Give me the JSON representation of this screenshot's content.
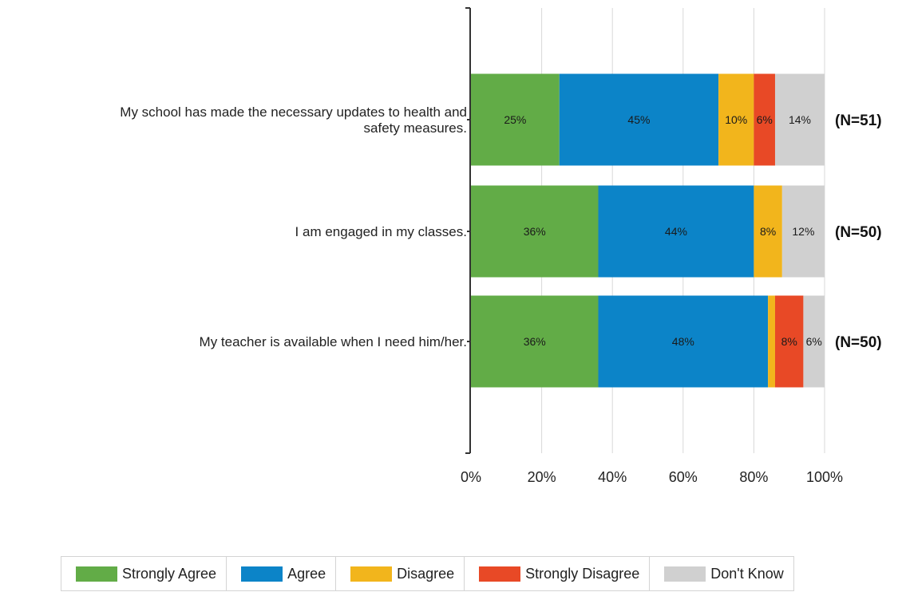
{
  "chart_data": {
    "type": "bar",
    "orientation": "horizontal",
    "stacked": true,
    "percent_scale": true,
    "categories": [
      [
        "My school has made the necessary updates to health and",
        "safety measures."
      ],
      [
        "I am engaged in my classes."
      ],
      [
        "My teacher is available when I need him/her."
      ]
    ],
    "n_labels": [
      "(N=51)",
      "(N=50)",
      "(N=50)"
    ],
    "series": [
      {
        "name": "Strongly Agree",
        "color": "#62ac47",
        "values": [
          25,
          36,
          36
        ],
        "labels": [
          "25%",
          "36%",
          "36%"
        ]
      },
      {
        "name": "Agree",
        "color": "#0c84c8",
        "values": [
          45,
          44,
          48
        ],
        "labels": [
          "45%",
          "44%",
          "48%"
        ]
      },
      {
        "name": "Disagree",
        "color": "#f2b51c",
        "values": [
          10,
          8,
          2
        ],
        "labels": [
          "10%",
          "8%",
          ""
        ]
      },
      {
        "name": "Strongly Disagree",
        "color": "#e84926",
        "values": [
          6,
          0,
          8
        ],
        "labels": [
          "6%",
          "",
          "8%"
        ]
      },
      {
        "name": "Don't Know",
        "color": "#d0d0d0",
        "values": [
          14,
          12,
          6
        ],
        "labels": [
          "14%",
          "12%",
          "6%"
        ]
      }
    ],
    "xlim": [
      0,
      100
    ],
    "x_ticks": [
      "0%",
      "20%",
      "40%",
      "60%",
      "80%",
      "100%"
    ],
    "grid": true,
    "legend_position": "bottom"
  }
}
